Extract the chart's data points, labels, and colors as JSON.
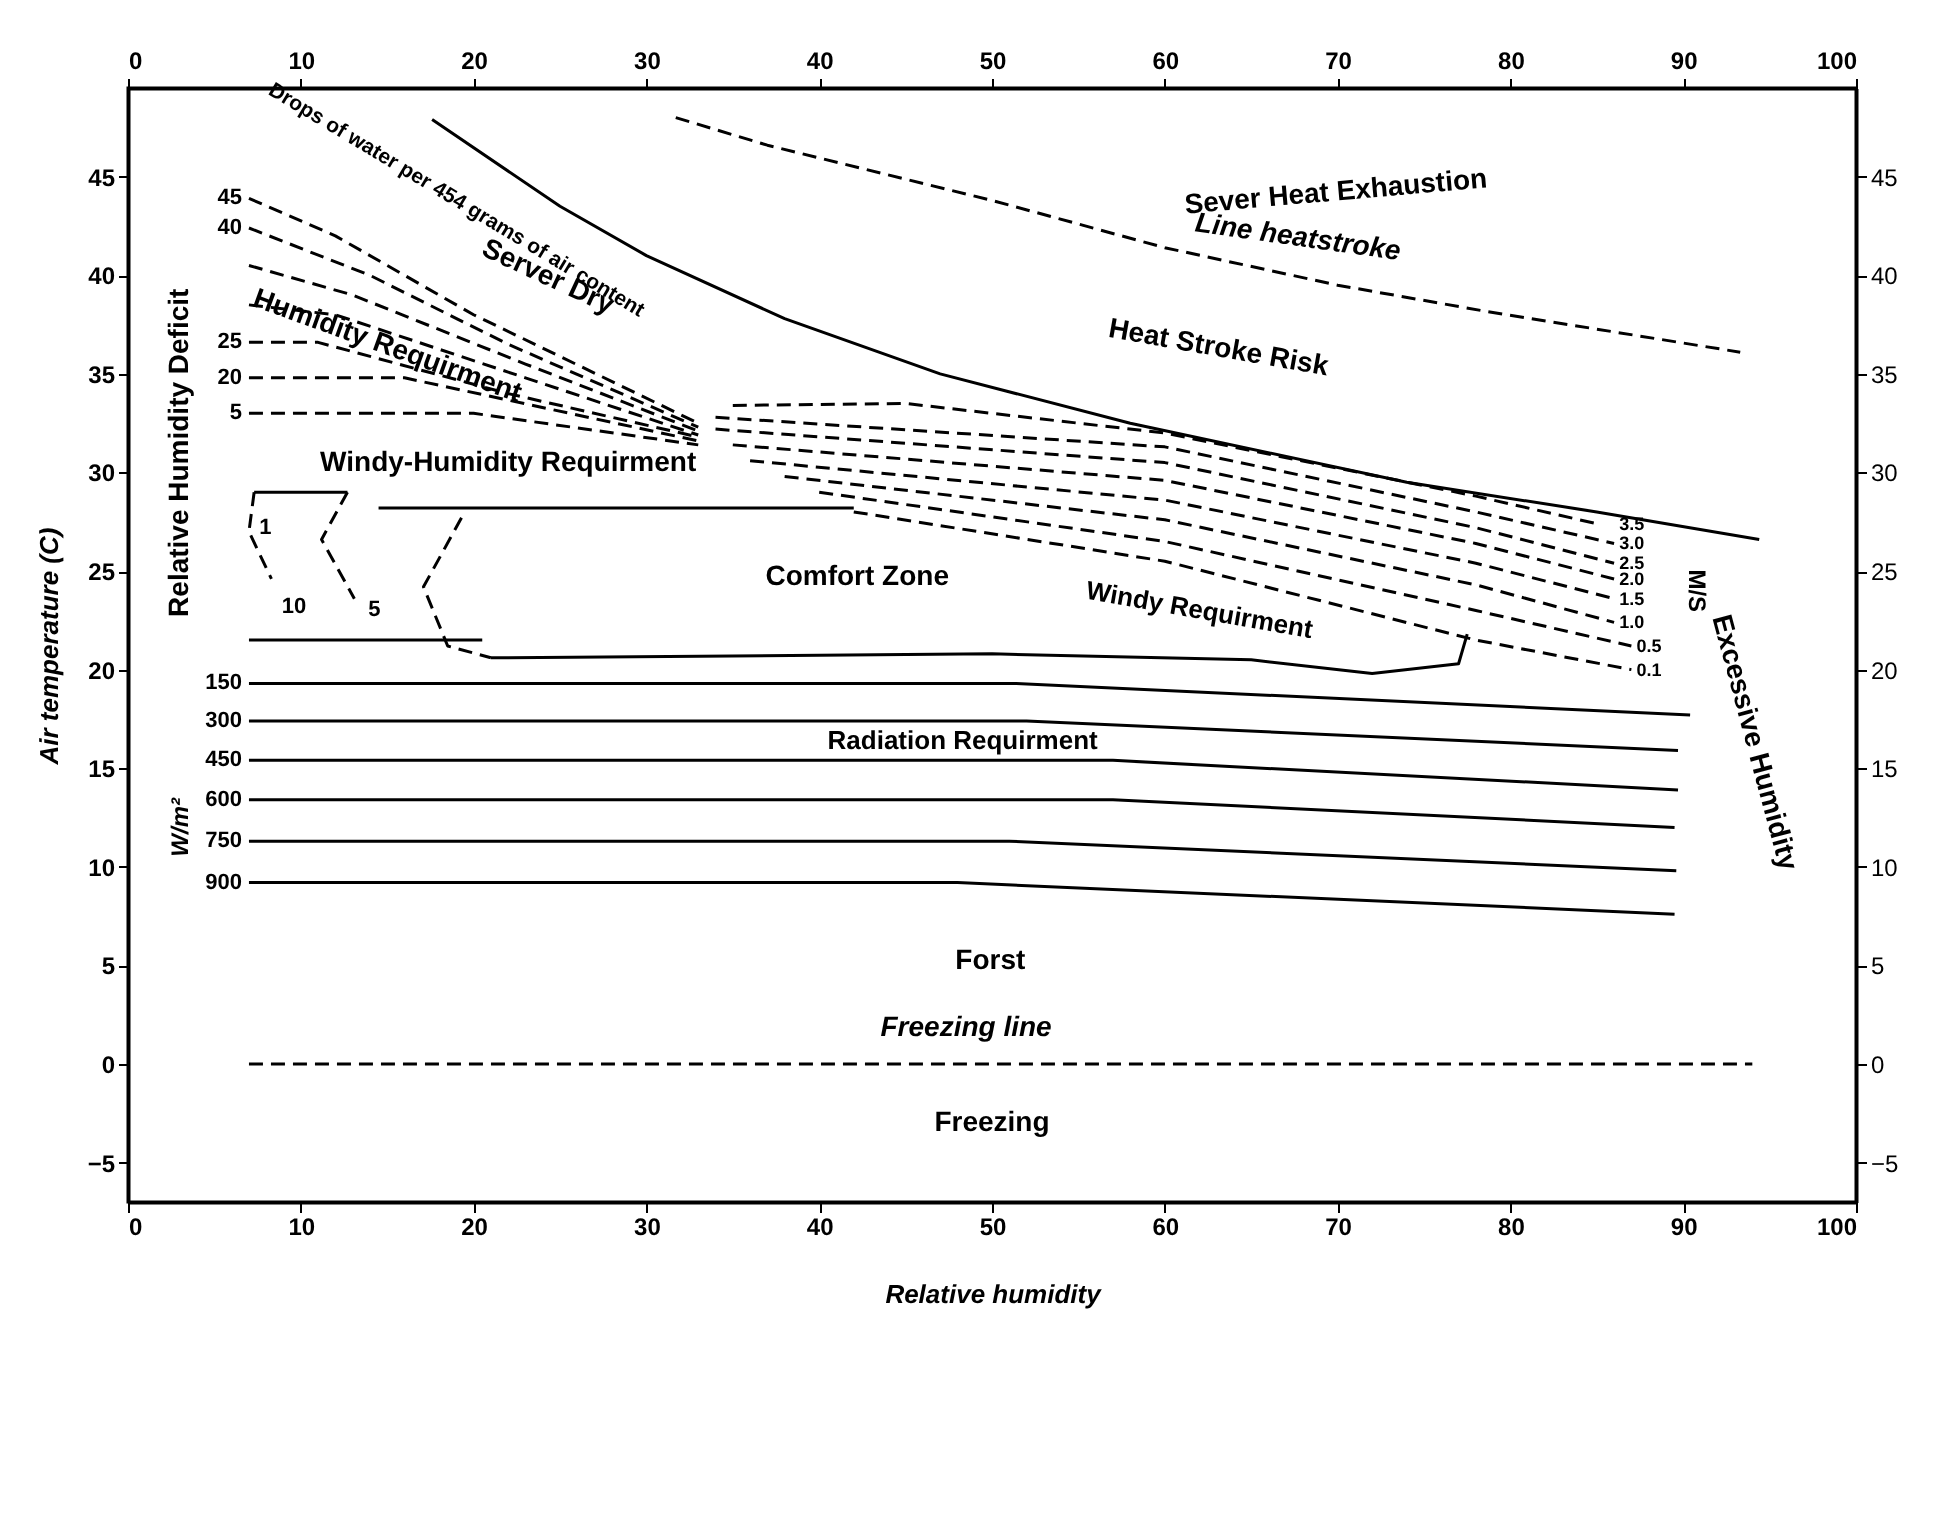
{
  "chart_data": {
    "type": "line",
    "xlabel": "Relative humidity",
    "ylabel": "Air temperature (C)",
    "xlim": [
      0,
      100
    ],
    "xticks": [
      0,
      10,
      20,
      30,
      40,
      50,
      60,
      70,
      80,
      90,
      100
    ],
    "x2lim": [
      0,
      100
    ],
    "x2ticks": [
      0,
      10,
      20,
      30,
      40,
      50,
      60,
      70,
      80,
      90,
      100
    ],
    "ylim": [
      -7,
      49.5
    ],
    "yticks": [
      -5,
      0,
      5,
      10,
      15,
      20,
      25,
      30,
      35,
      40,
      45
    ],
    "y2lim": [
      -7,
      49.5
    ],
    "y2ticks": [
      -5,
      0,
      5,
      10,
      15,
      20,
      25,
      30,
      35,
      40,
      45
    ],
    "grid": false,
    "marker": "none",
    "series": [
      {
        "color": "#000000",
        "line_style": "solid",
        "x": [
          17.6,
          25,
          30,
          38,
          47,
          58,
          74,
          85,
          94.4
        ],
        "values": [
          47.9,
          43.5,
          41,
          37.8,
          35,
          32.5,
          29.5,
          28,
          26.6
        ]
      },
      {
        "color": "#000000",
        "line_style": "dashed",
        "x": [
          31.7,
          37,
          50,
          60,
          70,
          78.4,
          93.3
        ],
        "values": [
          48,
          46.6,
          43.8,
          41.4,
          39.5,
          38.2,
          36.1
        ]
      },
      {
        "color": "#000000",
        "line_style": "dashed",
        "x": [
          7,
          94
        ],
        "values": [
          0,
          0
        ]
      },
      {
        "color": "#000000",
        "line_style": "solid",
        "x": [
          7,
          20.5
        ],
        "values": [
          21.5,
          21.5
        ]
      },
      {
        "color": "#000000",
        "line_style": "solid",
        "x": [
          7,
          51.4,
          90.4
        ],
        "values": [
          19.3,
          19.3,
          17.7
        ]
      },
      {
        "color": "#000000",
        "line_style": "solid",
        "x": [
          7,
          52,
          89.7
        ],
        "values": [
          17.4,
          17.4,
          15.9
        ]
      },
      {
        "color": "#000000",
        "line_style": "solid",
        "x": [
          7,
          57,
          89.7
        ],
        "values": [
          15.4,
          15.4,
          13.9
        ]
      },
      {
        "color": "#000000",
        "line_style": "solid",
        "x": [
          7,
          57,
          89.5
        ],
        "values": [
          13.4,
          13.4,
          12
        ]
      },
      {
        "color": "#000000",
        "line_style": "solid",
        "x": [
          7,
          51,
          89.6
        ],
        "values": [
          11.3,
          11.3,
          9.8
        ]
      },
      {
        "color": "#000000",
        "line_style": "solid",
        "x": [
          7,
          48,
          89.5
        ],
        "values": [
          9.2,
          9.2,
          7.6
        ]
      },
      {
        "color": "#000000",
        "line_style": "dashed",
        "x": [
          42,
          60,
          78,
          87
        ],
        "values": [
          28,
          25.5,
          21.5,
          20
        ]
      },
      {
        "color": "#000000",
        "line_style": "dashed",
        "x": [
          40,
          60,
          78,
          87
        ],
        "values": [
          29,
          26.5,
          23,
          21.2
        ]
      },
      {
        "color": "#000000",
        "line_style": "dashed",
        "x": [
          38,
          60,
          78,
          86
        ],
        "values": [
          29.8,
          27.6,
          24.3,
          22.4
        ]
      },
      {
        "color": "#000000",
        "line_style": "dashed",
        "x": [
          36,
          60,
          78,
          86
        ],
        "values": [
          30.6,
          28.6,
          25.4,
          23.6
        ]
      },
      {
        "color": "#000000",
        "line_style": "dashed",
        "x": [
          35,
          60,
          78,
          86
        ],
        "values": [
          31.4,
          29.6,
          26.4,
          24.6
        ]
      },
      {
        "color": "#000000",
        "line_style": "dashed",
        "x": [
          34,
          60,
          78,
          86
        ],
        "values": [
          32.2,
          30.5,
          27.2,
          25.4
        ]
      },
      {
        "color": "#000000",
        "line_style": "dashed",
        "x": [
          34,
          60,
          78,
          86
        ],
        "values": [
          32.8,
          31.3,
          28,
          26.4
        ]
      },
      {
        "color": "#000000",
        "line_style": "dashed",
        "x": [
          35,
          45,
          60,
          78,
          85
        ],
        "values": [
          33.4,
          33.5,
          32,
          28.8,
          27.4
        ]
      },
      {
        "color": "#000000",
        "line_style": "dashed",
        "x": [
          7,
          12,
          20,
          33
        ],
        "values": [
          43.9,
          42,
          38,
          32.5
        ]
      },
      {
        "color": "#000000",
        "line_style": "dashed",
        "x": [
          7,
          14,
          22,
          33
        ],
        "values": [
          42.4,
          40,
          36.5,
          32.3
        ]
      },
      {
        "color": "#000000",
        "line_style": "dashed",
        "x": [
          7,
          13,
          23,
          33
        ],
        "values": [
          40.5,
          39,
          35.5,
          32.1
        ]
      },
      {
        "color": "#000000",
        "line_style": "dashed",
        "x": [
          7,
          12,
          23,
          33
        ],
        "values": [
          38.5,
          38,
          34.8,
          31.9
        ]
      },
      {
        "color": "#000000",
        "line_style": "dashed",
        "x": [
          7,
          11,
          22,
          33
        ],
        "values": [
          36.6,
          36.6,
          34,
          31.8
        ]
      },
      {
        "color": "#000000",
        "line_style": "dashed",
        "x": [
          7,
          16,
          33
        ],
        "values": [
          34.8,
          34.8,
          31.6
        ]
      },
      {
        "color": "#000000",
        "line_style": "dashed",
        "x": [
          7,
          20,
          33
        ],
        "values": [
          33,
          33,
          31.4
        ]
      },
      {
        "color": "#000000",
        "line_style": "solid",
        "x": [
          14.5,
          42
        ],
        "values": [
          28.2,
          28.2
        ]
      },
      {
        "color": "#000000",
        "line_style": "dashed",
        "x": [
          19.3,
          17.1,
          18.5,
          21
        ],
        "values": [
          27.7,
          24.2,
          21.2,
          20.6
        ]
      },
      {
        "color": "#000000",
        "line_style": "solid",
        "x": [
          21,
          50,
          65,
          72,
          77,
          77.5
        ],
        "values": [
          20.6,
          20.8,
          20.5,
          19.8,
          20.3,
          21.8
        ]
      },
      {
        "color": "#000000",
        "line_style": "solid",
        "x": [
          7.3,
          12.7
        ],
        "values": [
          29,
          29
        ]
      },
      {
        "color": "#000000",
        "line_style": "dashed",
        "x": [
          7.3,
          7,
          8.3
        ],
        "values": [
          29,
          27,
          24.6
        ]
      },
      {
        "color": "#000000",
        "line_style": "dashed",
        "x": [
          12.7,
          11.2,
          13.1
        ],
        "values": [
          29,
          26.6,
          23.6
        ]
      }
    ],
    "annotations": [
      "Sever Heat Exhaustion",
      "Line heatstroke",
      "Heat Stroke Risk",
      "Windy Requirment",
      "Server Dry",
      "Humidity Requirment",
      "Windy-Humidity Requirment",
      "Comfort Zone",
      "Radiation Requirment",
      "Forst",
      "Freezing line",
      "Freezing",
      "Relative Humidity Deficit",
      "Excessive Humidity",
      "Drops of water per 454 grams of air content",
      "W/m²",
      "M/S",
      {
        "text": "150",
        "x": 6.6,
        "y": 19.3
      },
      {
        "text": "300",
        "x": 6.6,
        "y": 17.4
      },
      {
        "text": "450",
        "x": 6.6,
        "y": 15.4
      },
      {
        "text": "600",
        "x": 6.6,
        "y": 13.4
      },
      {
        "text": "750",
        "x": 6.6,
        "y": 11.3
      },
      {
        "text": "900",
        "x": 6.6,
        "y": 9.2
      },
      {
        "text": "45",
        "x": 6.6,
        "y": 43.9
      },
      {
        "text": "40",
        "x": 6.6,
        "y": 42.4
      },
      {
        "text": "25",
        "x": 6.6,
        "y": 36.6
      },
      {
        "text": "20",
        "x": 6.6,
        "y": 34.8
      },
      {
        "text": "5",
        "x": 6.6,
        "y": 33
      },
      {
        "text": "1",
        "x": 7.6,
        "y": 27.2
      },
      "10",
      "5",
      {
        "text": "3.5",
        "x": 86.3,
        "y": 27.4
      },
      {
        "text": "3.0",
        "x": 86.3,
        "y": 26.4
      },
      {
        "text": "2.5",
        "x": 86.3,
        "y": 25.4
      },
      {
        "text": "2.0",
        "x": 86.3,
        "y": 24.6
      },
      {
        "text": "1.5",
        "x": 86.3,
        "y": 23.6
      },
      {
        "text": "1.0",
        "x": 86.3,
        "y": 22.4
      },
      {
        "text": "0.5",
        "x": 87.3,
        "y": 21.2
      },
      {
        "text": "0.1",
        "x": 87.3,
        "y": 20
      }
    ]
  }
}
